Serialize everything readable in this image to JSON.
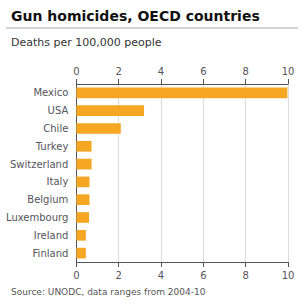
{
  "chart_data": {
    "type": "bar",
    "orientation": "horizontal",
    "title": "Gun homicides, OECD countries",
    "subtitle": "Deaths per 100,000 people",
    "annotations": [
      "Source: UNODC, data ranges from 2004-10"
    ],
    "categories": [
      "Mexico",
      "USA",
      "Chile",
      "Turkey",
      "Switzerland",
      "Italy",
      "Belgium",
      "Luxembourg",
      "Ireland",
      "Finland"
    ],
    "values": [
      9.97,
      3.2,
      2.1,
      0.72,
      0.72,
      0.62,
      0.62,
      0.6,
      0.45,
      0.45
    ],
    "color": "#F5A623",
    "xlim": [
      0,
      10
    ],
    "xticks": [
      0,
      2,
      4,
      6,
      8,
      10
    ],
    "grid": true
  }
}
